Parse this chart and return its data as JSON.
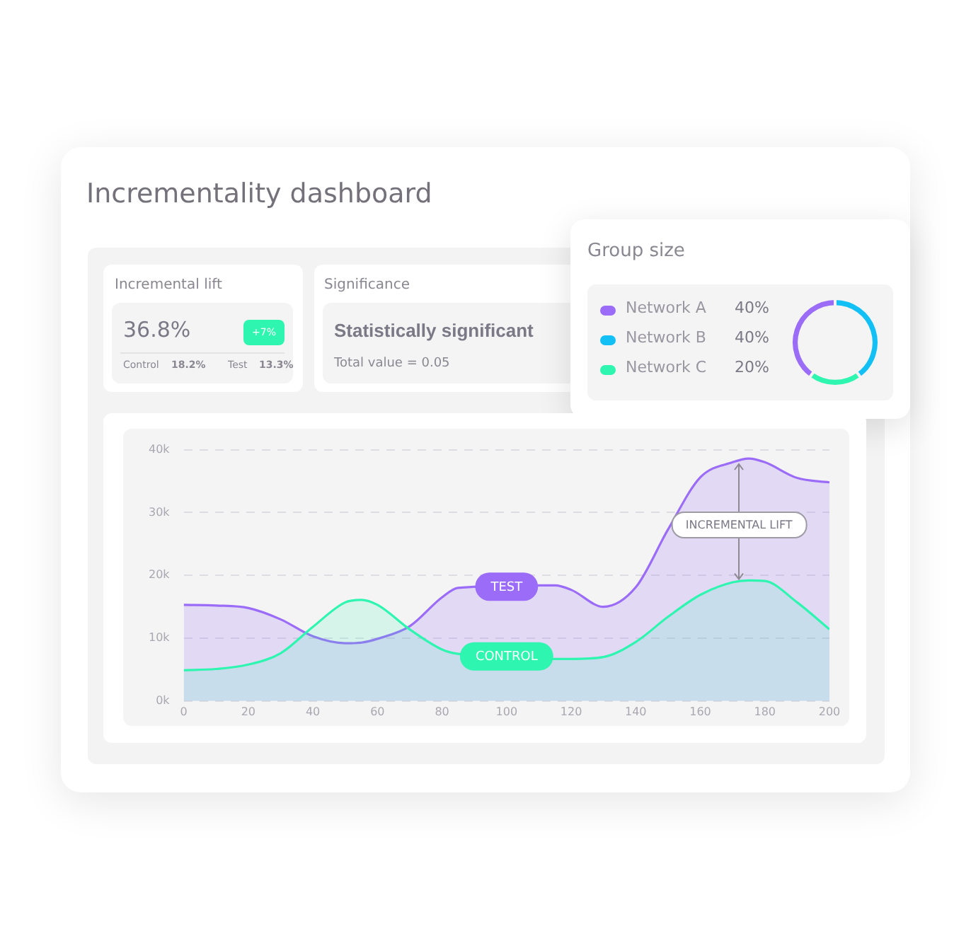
{
  "chart_data": [
    {
      "type": "other",
      "title": "Incrementality dashboard"
    },
    {
      "type": "other",
      "title": "Incremental lift",
      "annotations": [
        "36.8%",
        "+7%",
        "Control",
        "18.2%",
        "Test",
        "13.3%"
      ]
    },
    {
      "type": "other",
      "title": "Significance",
      "annotations": [
        "Statistically significant",
        "Total value = 0.05"
      ]
    },
    {
      "type": "donut",
      "title": "Group size",
      "categories": [
        "Network A",
        "Network B",
        "Network C"
      ],
      "values": [
        40,
        40,
        20
      ],
      "value_labels": [
        "40%",
        "40%",
        "20%"
      ],
      "colors": [
        "#9b6cf7",
        "#12c0f5",
        "#2ef5b0"
      ],
      "legend": "left"
    },
    {
      "type": "area",
      "x": [
        0,
        10,
        20,
        30,
        40,
        50,
        55,
        60,
        70,
        80,
        85,
        115,
        120,
        130,
        140,
        150,
        160,
        170,
        175,
        180,
        190,
        200
      ],
      "series": [
        {
          "name": "TEST",
          "color": "#9b6cf7",
          "values": [
            15.3,
            15.2,
            14.8,
            13.0,
            10.3,
            9.2,
            9.3,
            9.9,
            11.9,
            16.5,
            18.0,
            18.4,
            17.7,
            15.0,
            18.1,
            27.3,
            35.6,
            38.0,
            38.6,
            38.0,
            35.5,
            34.8
          ]
        },
        {
          "name": "CONTROL",
          "color": "#2ef5b0",
          "values": [
            4.9,
            5.1,
            5.8,
            7.6,
            11.8,
            15.7,
            16.1,
            15.3,
            11.4,
            8.2,
            7.5,
            6.7,
            6.7,
            7.0,
            9.4,
            13.4,
            16.9,
            18.9,
            19.2,
            19.1,
            15.7,
            11.4
          ]
        }
      ],
      "xlim": [
        0,
        200
      ],
      "xticks": [
        0,
        20,
        40,
        60,
        80,
        100,
        120,
        140,
        160,
        180,
        200
      ],
      "ylim": [
        0,
        40
      ],
      "yticks": [
        {
          "value": 0,
          "label": "0k"
        },
        {
          "value": 10,
          "label": "10k"
        },
        {
          "value": 20,
          "label": "20k"
        },
        {
          "value": 30,
          "label": "30k"
        },
        {
          "value": 40,
          "label": "40k"
        }
      ],
      "grid": "y",
      "legend": false,
      "marker": "none",
      "line_style": "solid",
      "annotations": [
        "INCREMENTAL LIFT"
      ]
    }
  ]
}
